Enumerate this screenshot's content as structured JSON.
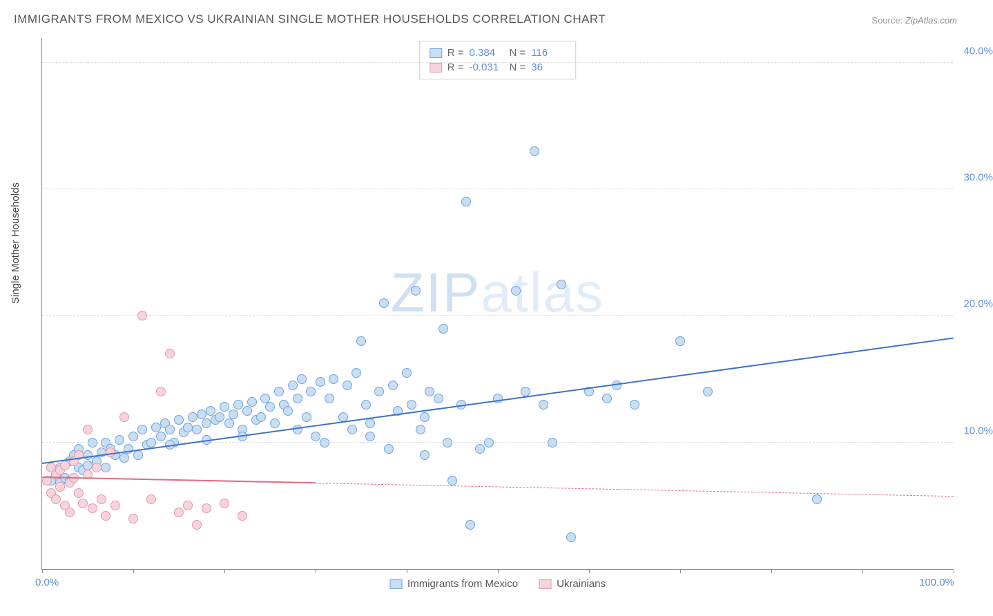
{
  "title": "IMMIGRANTS FROM MEXICO VS UKRAINIAN SINGLE MOTHER HOUSEHOLDS CORRELATION CHART",
  "source_label": "Source:",
  "source_value": "ZipAtlas.com",
  "ylabel": "Single Mother Households",
  "watermark_a": "ZIP",
  "watermark_b": "atlas",
  "chart": {
    "type": "scatter",
    "xlim": [
      0,
      100
    ],
    "ylim": [
      0,
      42
    ],
    "background_color": "#ffffff",
    "grid_color": "#dddddd",
    "axis_color": "#888888",
    "label_color": "#5b8fd8",
    "yticks": [
      10,
      20,
      30,
      40
    ],
    "ytick_labels": [
      "10.0%",
      "20.0%",
      "30.0%",
      "40.0%"
    ],
    "xticks": [
      0,
      10,
      20,
      30,
      40,
      50,
      60,
      70,
      80,
      90,
      100
    ],
    "xtick_labels_shown": {
      "0": "0.0%",
      "100": "100.0%"
    },
    "marker_radius": 7,
    "marker_stroke_width": 1.2
  },
  "series": [
    {
      "name": "Immigrants from Mexico",
      "fill": "#c9ddf3",
      "stroke": "#6fa3dd",
      "line_color": "#3b74c4",
      "R": "0.384",
      "N": "116",
      "trend": {
        "x1": 0,
        "y1": 8.3,
        "x2": 100,
        "y2": 18.2,
        "data_xmax": 100
      },
      "points": [
        [
          1,
          7
        ],
        [
          1.5,
          7.5
        ],
        [
          2,
          8
        ],
        [
          2,
          6.8
        ],
        [
          2.5,
          7.2
        ],
        [
          3,
          8.5
        ],
        [
          3,
          7
        ],
        [
          3.5,
          9
        ],
        [
          4,
          8
        ],
        [
          4,
          9.5
        ],
        [
          4.5,
          7.8
        ],
        [
          5,
          8.2
        ],
        [
          5,
          9
        ],
        [
          5.5,
          10
        ],
        [
          6,
          8.5
        ],
        [
          6.5,
          9.2
        ],
        [
          7,
          8
        ],
        [
          7,
          10
        ],
        [
          7.5,
          9.5
        ],
        [
          8,
          9
        ],
        [
          8.5,
          10.2
        ],
        [
          9,
          8.8
        ],
        [
          9.5,
          9.5
        ],
        [
          10,
          10.5
        ],
        [
          10.5,
          9
        ],
        [
          11,
          11
        ],
        [
          11.5,
          9.8
        ],
        [
          12,
          10
        ],
        [
          12.5,
          11.2
        ],
        [
          13,
          10.5
        ],
        [
          13.5,
          11.5
        ],
        [
          14,
          11
        ],
        [
          14.5,
          10
        ],
        [
          15,
          11.8
        ],
        [
          15.5,
          10.8
        ],
        [
          16,
          11.2
        ],
        [
          16.5,
          12
        ],
        [
          17,
          11
        ],
        [
          17.5,
          12.2
        ],
        [
          18,
          11.5
        ],
        [
          18.5,
          12.5
        ],
        [
          19,
          11.8
        ],
        [
          19.5,
          12
        ],
        [
          20,
          12.8
        ],
        [
          20.5,
          11.5
        ],
        [
          21,
          12.2
        ],
        [
          21.5,
          13
        ],
        [
          22,
          11
        ],
        [
          22.5,
          12.5
        ],
        [
          23,
          13.2
        ],
        [
          23.5,
          11.8
        ],
        [
          24,
          12
        ],
        [
          24.5,
          13.5
        ],
        [
          25,
          12.8
        ],
        [
          25.5,
          11.5
        ],
        [
          26,
          14
        ],
        [
          26.5,
          13
        ],
        [
          27,
          12.5
        ],
        [
          27.5,
          14.5
        ],
        [
          28,
          13.5
        ],
        [
          28.5,
          15
        ],
        [
          29,
          12
        ],
        [
          29.5,
          14
        ],
        [
          30,
          10.5
        ],
        [
          30.5,
          14.8
        ],
        [
          31,
          10
        ],
        [
          31.5,
          13.5
        ],
        [
          32,
          15
        ],
        [
          33,
          12
        ],
        [
          33.5,
          14.5
        ],
        [
          34,
          11
        ],
        [
          34.5,
          15.5
        ],
        [
          35,
          18
        ],
        [
          35.5,
          13
        ],
        [
          36,
          10.5
        ],
        [
          37,
          14
        ],
        [
          37.5,
          21
        ],
        [
          38,
          9.5
        ],
        [
          38.5,
          14.5
        ],
        [
          39,
          12.5
        ],
        [
          40,
          15.5
        ],
        [
          40.5,
          13
        ],
        [
          41,
          22
        ],
        [
          41.5,
          11
        ],
        [
          42,
          9
        ],
        [
          42.5,
          14
        ],
        [
          43.5,
          13.5
        ],
        [
          44,
          19
        ],
        [
          44.5,
          10
        ],
        [
          45,
          7
        ],
        [
          46,
          13
        ],
        [
          46.5,
          29
        ],
        [
          47,
          3.5
        ],
        [
          48,
          9.5
        ],
        [
          49,
          10
        ],
        [
          50,
          13.5
        ],
        [
          52,
          22
        ],
        [
          53,
          14
        ],
        [
          54,
          33
        ],
        [
          55,
          13
        ],
        [
          56,
          10
        ],
        [
          57,
          22.5
        ],
        [
          58,
          2.5
        ],
        [
          60,
          14
        ],
        [
          62,
          13.5
        ],
        [
          63,
          14.5
        ],
        [
          65,
          13
        ],
        [
          70,
          18
        ],
        [
          73,
          14
        ],
        [
          85,
          5.5
        ],
        [
          42,
          12
        ],
        [
          36,
          11.5
        ],
        [
          28,
          11
        ],
        [
          22,
          10.5
        ],
        [
          18,
          10.2
        ],
        [
          14,
          9.8
        ]
      ]
    },
    {
      "name": "Ukrainians",
      "fill": "#f7d4db",
      "stroke": "#e896a6",
      "line_color": "#e06b85",
      "R": "-0.031",
      "N": "36",
      "trend": {
        "x1": 0,
        "y1": 7.2,
        "x2": 100,
        "y2": 5.7,
        "data_xmax": 30
      },
      "points": [
        [
          0.5,
          7
        ],
        [
          1,
          6
        ],
        [
          1,
          8
        ],
        [
          1.5,
          7.5
        ],
        [
          1.5,
          5.5
        ],
        [
          2,
          6.5
        ],
        [
          2,
          7.8
        ],
        [
          2.5,
          5
        ],
        [
          2.5,
          8.2
        ],
        [
          3,
          6.8
        ],
        [
          3,
          4.5
        ],
        [
          3.5,
          7.2
        ],
        [
          3.5,
          8.5
        ],
        [
          4,
          6
        ],
        [
          4,
          9
        ],
        [
          4.5,
          5.2
        ],
        [
          5,
          7.5
        ],
        [
          5,
          11
        ],
        [
          5.5,
          4.8
        ],
        [
          6,
          8
        ],
        [
          6.5,
          5.5
        ],
        [
          7,
          4.2
        ],
        [
          7.5,
          9.2
        ],
        [
          8,
          5
        ],
        [
          9,
          12
        ],
        [
          10,
          4
        ],
        [
          11,
          20
        ],
        [
          12,
          5.5
        ],
        [
          13,
          14
        ],
        [
          14,
          17
        ],
        [
          15,
          4.5
        ],
        [
          16,
          5
        ],
        [
          17,
          3.5
        ],
        [
          18,
          4.8
        ],
        [
          20,
          5.2
        ],
        [
          22,
          4.2
        ]
      ]
    }
  ],
  "legend_top": [
    {
      "swatch_fill": "#c9ddf3",
      "swatch_stroke": "#6fa3dd",
      "R_label": "R =",
      "R_val": "0.384",
      "N_label": "N =",
      "N_val": "116"
    },
    {
      "swatch_fill": "#f7d4db",
      "swatch_stroke": "#e896a6",
      "R_label": "R =",
      "R_val": "-0.031",
      "N_label": "N =",
      "N_val": "36"
    }
  ],
  "legend_bottom": [
    {
      "swatch_fill": "#c9ddf3",
      "swatch_stroke": "#6fa3dd",
      "label": "Immigrants from Mexico"
    },
    {
      "swatch_fill": "#f7d4db",
      "swatch_stroke": "#e896a6",
      "label": "Ukrainians"
    }
  ]
}
